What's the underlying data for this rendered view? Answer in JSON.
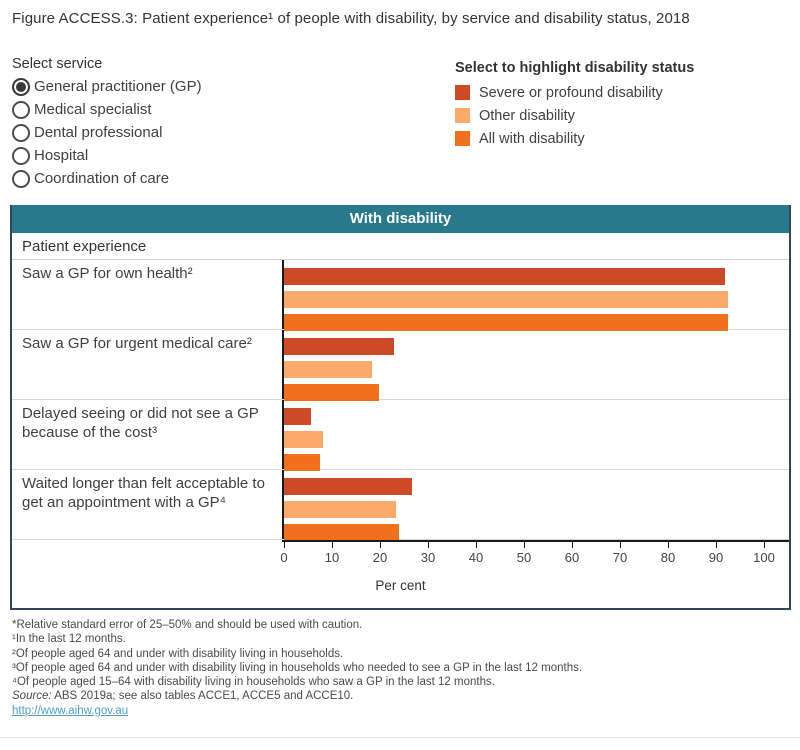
{
  "title": "Figure ACCESS.3: Patient experience¹ of people with disability, by service and disability status, 2018",
  "service_selector": {
    "label": "Select service",
    "options": [
      {
        "label": "General practitioner (GP)",
        "selected": true
      },
      {
        "label": "Medical specialist",
        "selected": false
      },
      {
        "label": "Dental professional",
        "selected": false
      },
      {
        "label": "Hospital",
        "selected": false
      },
      {
        "label": "Coordination of care",
        "selected": false
      }
    ]
  },
  "legend": {
    "label": "Select to highlight disability status",
    "items": [
      {
        "label": "Severe or profound disability",
        "color": "#CD4A27"
      },
      {
        "label": "Other disability",
        "color": "#FBAA6A"
      },
      {
        "label": "All with disability",
        "color": "#F1701E"
      }
    ]
  },
  "chart": {
    "header": "With disability",
    "header_bg": "#28798C",
    "row_header": "Patient experience",
    "border_color": "#31465a"
  },
  "chart_data": {
    "type": "bar",
    "orientation": "horizontal",
    "title": "With disability",
    "categories": [
      "Saw a GP for own health²",
      "Saw a GP for urgent medical care²",
      "Delayed seeing or did not see a GP because of the cost³",
      "Waited longer than felt acceptable to get an appointment with a GP⁴"
    ],
    "series": [
      {
        "name": "Severe or profound disability",
        "color": "#CD4A27",
        "values": [
          91.8,
          22.9,
          5.7,
          26.6
        ]
      },
      {
        "name": "Other disability",
        "color": "#FBAA6A",
        "values": [
          92.5,
          18.3,
          8.1,
          23.3
        ]
      },
      {
        "name": "All with disability",
        "color": "#F1701E",
        "values": [
          92.4,
          19.7,
          7.5,
          23.9
        ]
      }
    ],
    "xlabel": "Per cent",
    "xlim": [
      0,
      100
    ],
    "xticks": [
      0,
      10,
      20,
      30,
      40,
      50,
      60,
      70,
      80,
      90,
      100
    ],
    "grid": false,
    "legend_position": "top-right"
  },
  "footnotes": {
    "lines": [
      "*Relative standard error of 25–50% and should be used with caution.",
      "¹In the last 12 months.",
      "²Of people aged 64 and under with disability living in households.",
      "³Of people aged 64 and under with disability living in households who needed to see a GP in the last 12 months.",
      "⁴Of people aged 15–64 with disability living in households who saw a GP in the last 12 months."
    ],
    "source_prefix": "Source:",
    "source_rest": " ABS 2019a; see also tables ACCE1, ACCE5 and ACCE10.",
    "link": "http://www.aihw.gov.au"
  }
}
